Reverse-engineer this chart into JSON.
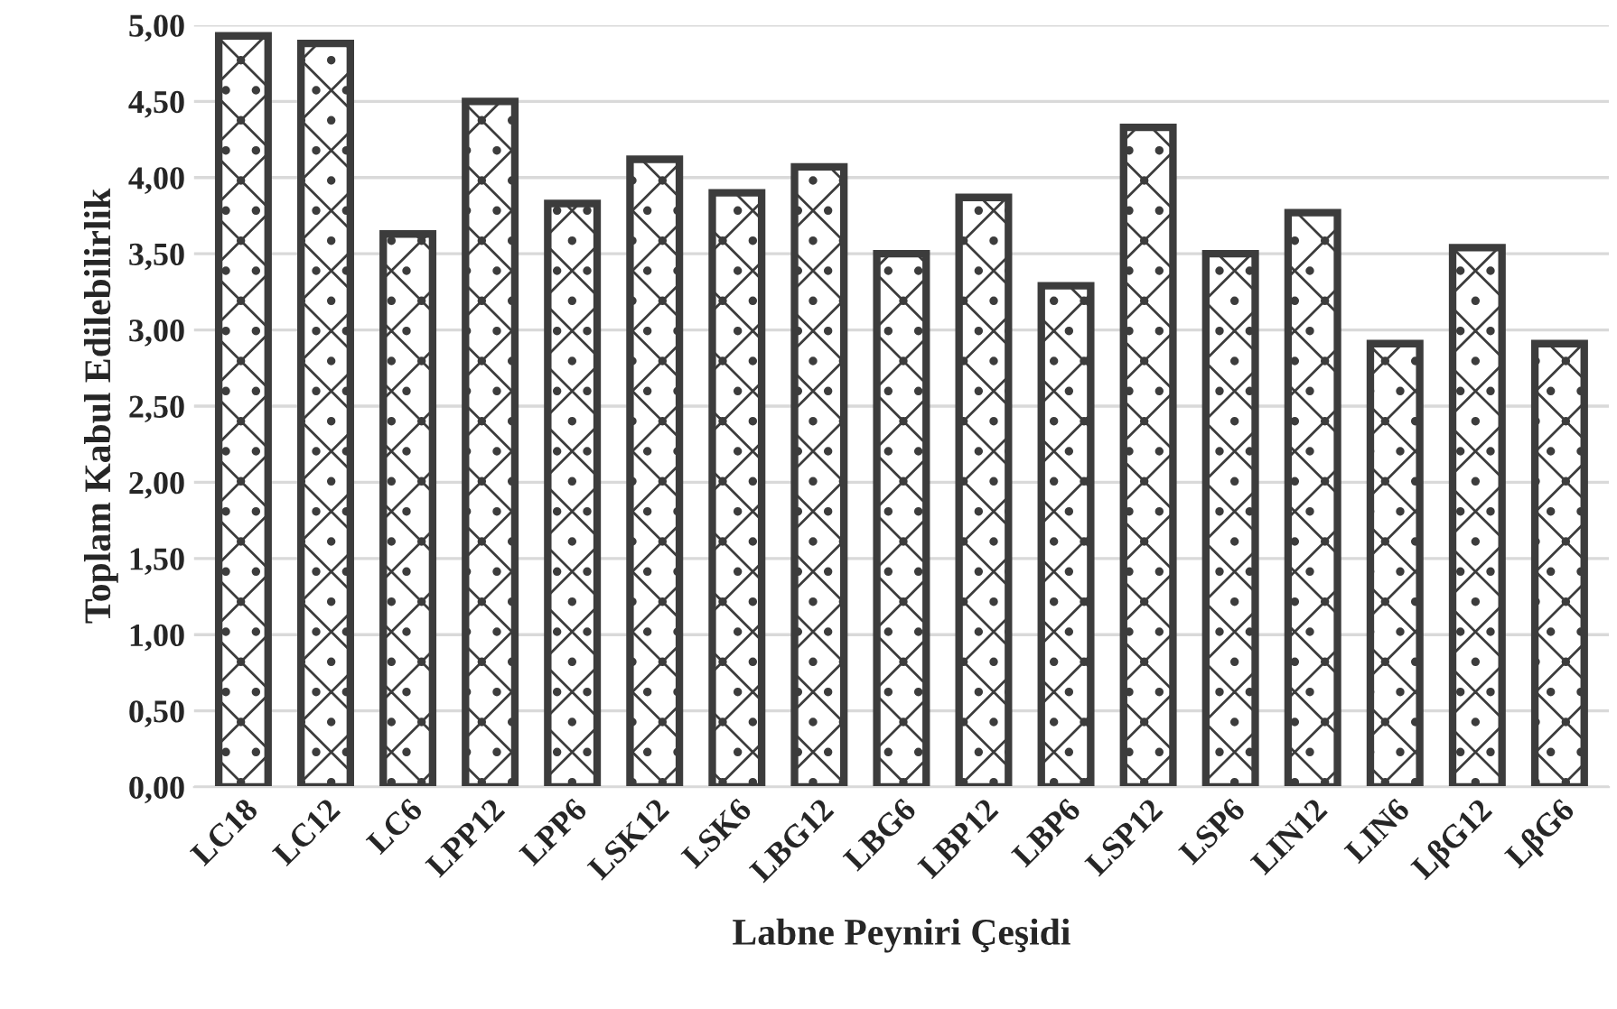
{
  "chart_data": {
    "type": "bar",
    "xlabel": "Labne Peyniri Çeşidi",
    "ylabel": "Toplam Kabul Edilebilirlik",
    "categories": [
      "LC18",
      "LC12",
      "LC6",
      "LPP12",
      "LPP6",
      "LSK12",
      "LSK6",
      "LBG12",
      "LBG6",
      "LBP12",
      "LBP6",
      "LSP12",
      "LSP6",
      "LIN12",
      "LIN6",
      "LβG12",
      "LβG6"
    ],
    "values": [
      4.93,
      4.88,
      3.63,
      4.5,
      3.83,
      4.12,
      3.9,
      4.07,
      3.5,
      3.87,
      3.29,
      4.33,
      3.5,
      3.77,
      2.91,
      3.54,
      2.91
    ],
    "color": "#3c3c3c",
    "ylim": [
      0,
      5
    ],
    "yticks": [
      {
        "value": 0,
        "label": "0,00"
      },
      {
        "value": 0.5,
        "label": "0,50"
      },
      {
        "value": 1,
        "label": "1,00"
      },
      {
        "value": 1.5,
        "label": "1,50"
      },
      {
        "value": 2,
        "label": "2,00"
      },
      {
        "value": 2.5,
        "label": "2,50"
      },
      {
        "value": 3,
        "label": "3,00"
      },
      {
        "value": 3.5,
        "label": "3,50"
      },
      {
        "value": 4,
        "label": "4,00"
      },
      {
        "value": 4.5,
        "label": "4,50"
      },
      {
        "value": 5,
        "label": "5,00"
      }
    ],
    "grid": "y"
  }
}
